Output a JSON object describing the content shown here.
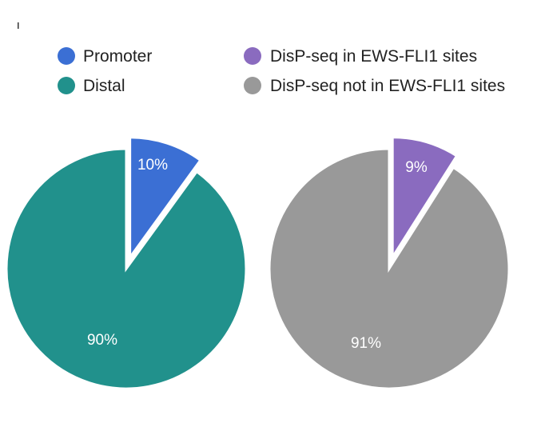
{
  "chart_data": [
    {
      "type": "pie",
      "title": "",
      "slices": [
        {
          "label": "Promoter",
          "value": 10,
          "display": "10%",
          "color": "#3b6fd4",
          "exploded": true
        },
        {
          "label": "Distal",
          "value": 90,
          "display": "90%",
          "color": "#21918c",
          "exploded": false
        }
      ]
    },
    {
      "type": "pie",
      "title": "",
      "slices": [
        {
          "label": "DisP-seq in EWS-FLI1 sites",
          "value": 9,
          "display": "9%",
          "color": "#8a6bbf",
          "exploded": true
        },
        {
          "label": "DisP-seq not in EWS-FLI1 sites",
          "value": 91,
          "display": "91%",
          "color": "#999999",
          "exploded": false
        }
      ]
    }
  ]
}
